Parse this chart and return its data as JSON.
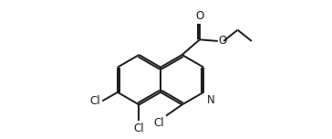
{
  "bg_color": "#ffffff",
  "line_color": "#1a1a1a",
  "line_width": 1.4,
  "font_size": 8.5,
  "figsize": [
    3.64,
    1.52
  ],
  "dpi": 100,
  "xlim": [
    0,
    10.5
  ],
  "ylim": [
    -0.5,
    4.2
  ]
}
